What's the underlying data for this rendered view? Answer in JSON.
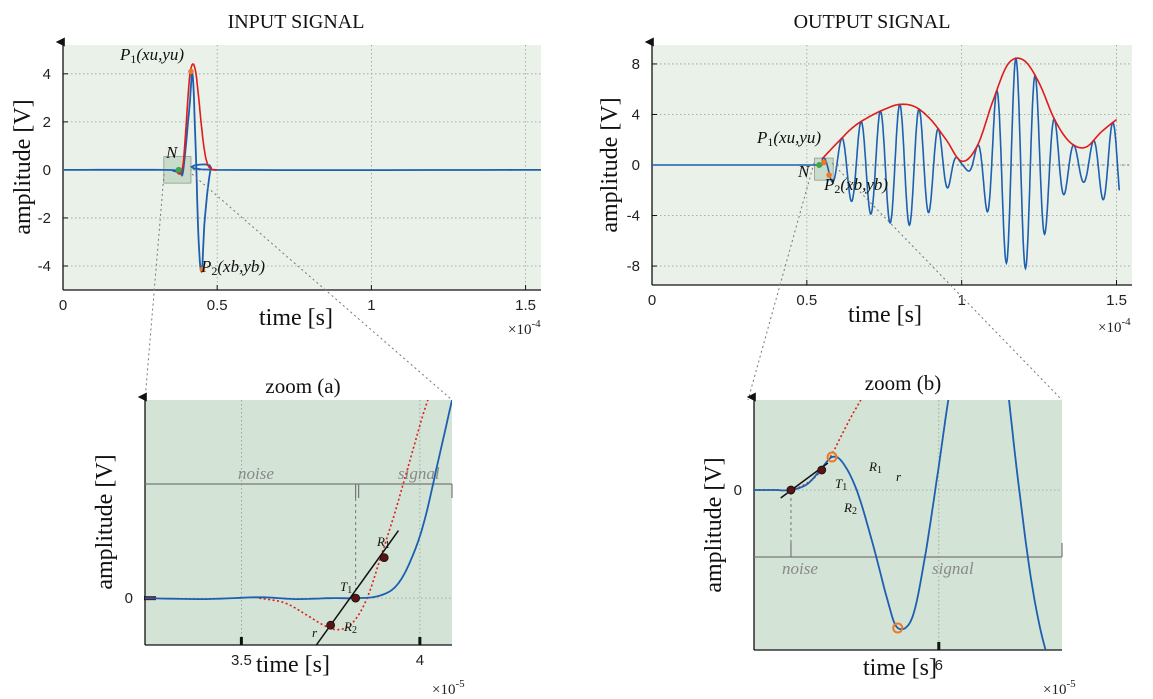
{
  "colors": {
    "signal": "#1d5fb0",
    "envelope": "#e01b1b",
    "dotted": "#e01b1b",
    "panel_bg": "#e9f1e9",
    "zoom_bg": "#d3e3d6",
    "noise_window": "#d3e3d6",
    "point_marker": "#f07820",
    "onset_marker": "#3aa84a",
    "fit_point": "#5a1414",
    "grid": "#9a9a9a"
  },
  "chart_data": [
    {
      "id": "input",
      "type": "line",
      "title": "INPUT SIGNAL",
      "xlabel": "time [s]",
      "ylabel": "amplitude [V]",
      "x_multiplier": "×10",
      "x_exponent": "-4",
      "xlim": [
        0,
        1.55
      ],
      "ylim": [
        -5,
        5.2
      ],
      "xticks": [
        0,
        0.5,
        1,
        1.5
      ],
      "xtick_labels": [
        "0",
        "0.5",
        "1",
        "1.5"
      ],
      "yticks": [
        -4,
        -2,
        0,
        2,
        4
      ],
      "ytick_labels": [
        "-4",
        "-2",
        "0",
        "2",
        "4"
      ],
      "grid": true,
      "series": [
        {
          "role": "signal",
          "x": [
            0,
            0.33,
            0.36,
            0.38,
            0.39,
            0.41,
            0.42,
            0.43,
            0.44,
            0.45,
            0.46,
            0.48,
            0.5,
            1.55
          ],
          "y": [
            0,
            0,
            -0.05,
            -0.1,
            0,
            2.6,
            4.0,
            1.0,
            -3.0,
            -4.2,
            -2.0,
            0.1,
            0,
            0
          ]
        },
        {
          "role": "envelope",
          "x": [
            0.37,
            0.38,
            0.39,
            0.4,
            0.41,
            0.42,
            0.43,
            0.44,
            0.45,
            0.46,
            0.47,
            0.48,
            0.49,
            0.5
          ],
          "y": [
            -0.1,
            -0.15,
            0.3,
            2.0,
            3.8,
            4.4,
            4.1,
            3.0,
            1.7,
            0.7,
            0.2,
            0.05,
            0,
            0
          ]
        }
      ],
      "points": [
        {
          "label": "P",
          "sub": "1",
          "coord": "(xu,yu)",
          "x": 0.415,
          "y": 4.1
        },
        {
          "label": "P",
          "sub": "2",
          "coord": "(xb,yb)",
          "x": 0.452,
          "y": -4.15
        }
      ],
      "onset": {
        "label": "N",
        "x": 0.375,
        "y": 0
      }
    },
    {
      "id": "output",
      "type": "line",
      "title": "OUTPUT SIGNAL",
      "xlabel": "time [s]",
      "ylabel": "amplitude [V]",
      "x_multiplier": "×10",
      "x_exponent": "-4",
      "xlim": [
        0,
        1.55
      ],
      "ylim": [
        -9.5,
        9.5
      ],
      "xticks": [
        0,
        0.5,
        1,
        1.5
      ],
      "xtick_labels": [
        "0",
        "0.5",
        "1",
        "1.5"
      ],
      "yticks": [
        -8,
        -4,
        0,
        4,
        8
      ],
      "ytick_labels": [
        "-8",
        "-4",
        "0",
        "4",
        "8"
      ],
      "grid": true,
      "series": [
        {
          "role": "envelope",
          "x": [
            0.55,
            0.6,
            0.65,
            0.7,
            0.75,
            0.8,
            0.85,
            0.9,
            0.95,
            1.0,
            1.05,
            1.1,
            1.15,
            1.2,
            1.25,
            1.3,
            1.35,
            1.4,
            1.45,
            1.5
          ],
          "y": [
            0.5,
            1.8,
            3.0,
            3.8,
            4.4,
            4.8,
            4.6,
            3.6,
            2.0,
            0.3,
            1.5,
            5.0,
            8.0,
            8.3,
            6.5,
            3.6,
            1.8,
            1.4,
            2.6,
            3.6
          ]
        }
      ],
      "points": [
        {
          "label": "P",
          "sub": "1",
          "coord": "(xu,yu)",
          "x": 0.555,
          "y": 0.2
        },
        {
          "label": "P",
          "sub": "2",
          "coord": "(xb,yb)",
          "x": 0.572,
          "y": -0.8
        }
      ],
      "onset": {
        "label": "N",
        "x": 0.54,
        "y": 0
      }
    },
    {
      "id": "zoom_a",
      "type": "line",
      "title": "zoom (a)",
      "xlabel": "time [s]",
      "ylabel": "amplitude [V]",
      "x_multiplier": "×10",
      "x_exponent": "-5",
      "xlim": [
        3.23,
        4.09
      ],
      "ylim": [
        -0.52,
        2.2
      ],
      "xticks": [
        3.5,
        4
      ],
      "xtick_labels": [
        "3.5",
        "4"
      ],
      "yticks": [
        0
      ],
      "ytick_labels": [
        "0"
      ],
      "zones": {
        "noise": "noise",
        "signal": "signal",
        "split_x": 3.82
      },
      "points": [
        {
          "label": "T",
          "sub": "1",
          "x": 3.82,
          "y": 0
        },
        {
          "label": "R",
          "sub": "1",
          "x": 3.9,
          "y": 0.45
        },
        {
          "label": "R",
          "sub": "2",
          "x": 3.75,
          "y": -0.3
        }
      ],
      "fit_line_label": "r"
    },
    {
      "id": "zoom_b",
      "type": "line",
      "title": "zoom (b)",
      "xlabel": "time [s]",
      "ylabel": "amplitude [V]",
      "x_multiplier": "×10",
      "x_exponent": "-5",
      "xlim": [
        5.1,
        6.6
      ],
      "ylim": [
        -1.6,
        0.9
      ],
      "xticks": [
        6
      ],
      "xtick_labels": [
        "6"
      ],
      "yticks": [
        0
      ],
      "ytick_labels": [
        "0"
      ],
      "zones": {
        "noise": "noise",
        "signal": "signal",
        "split_x": 5.28
      },
      "points": [
        {
          "label": "T",
          "sub": "1",
          "x": 5.28,
          "y": 0
        },
        {
          "label": "R",
          "sub": "1",
          "x": 5.43,
          "y": 0.2
        },
        {
          "label": "R",
          "sub": "2",
          "x": 5.28,
          "y": -0.1
        }
      ],
      "fit_line_label": "r"
    }
  ],
  "zoom_box_labels": {
    "input": "N",
    "output": "N"
  }
}
